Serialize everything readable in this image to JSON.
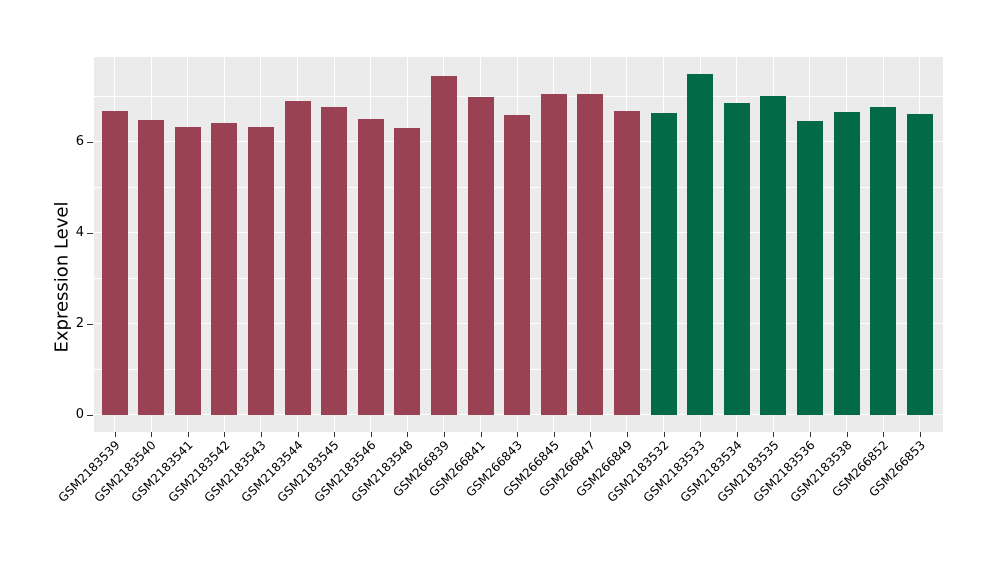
{
  "style": {
    "figure_background": "#ffffff",
    "plot_background": "#EBEBEB",
    "grid_color": "#ffffff",
    "tick_mark_color": "#333333",
    "text_color": "#000000"
  },
  "chart_data": {
    "type": "bar",
    "title": "",
    "xlabel": "",
    "ylabel": "Expression Level",
    "ylim": [
      0,
      7.85
    ],
    "yticks": [
      0,
      2,
      4,
      6
    ],
    "grid_y_values": [
      0,
      1,
      2,
      3,
      4,
      5,
      6,
      7
    ],
    "grid": "white gridlines on gray panel (ggplot style)",
    "legend_position": "none",
    "categories": [
      "GSM2183539",
      "GSM2183540",
      "GSM2183541",
      "GSM2183542",
      "GSM2183543",
      "GSM2183544",
      "GSM2183545",
      "GSM2183546",
      "GSM2183548",
      "GSM266839",
      "GSM266841",
      "GSM266843",
      "GSM266845",
      "GSM266847",
      "GSM266849",
      "GSM2183532",
      "GSM2183533",
      "GSM2183534",
      "GSM2183535",
      "GSM2183536",
      "GSM2183538",
      "GSM266852",
      "GSM266853"
    ],
    "values": [
      6.69,
      6.48,
      6.34,
      6.42,
      6.34,
      6.9,
      6.77,
      6.51,
      6.3,
      7.46,
      7.0,
      6.59,
      7.05,
      7.05,
      6.69,
      6.63,
      7.49,
      6.85,
      7.01,
      6.46,
      6.65,
      6.77,
      6.62
    ],
    "groups": [
      "group1",
      "group1",
      "group1",
      "group1",
      "group1",
      "group1",
      "group1",
      "group1",
      "group1",
      "group1",
      "group1",
      "group1",
      "group1",
      "group1",
      "group1",
      "group2",
      "group2",
      "group2",
      "group2",
      "group2",
      "group2",
      "group2",
      "group2"
    ],
    "group_colors": {
      "group1": "#9A4253",
      "group2": "#036A48"
    }
  }
}
